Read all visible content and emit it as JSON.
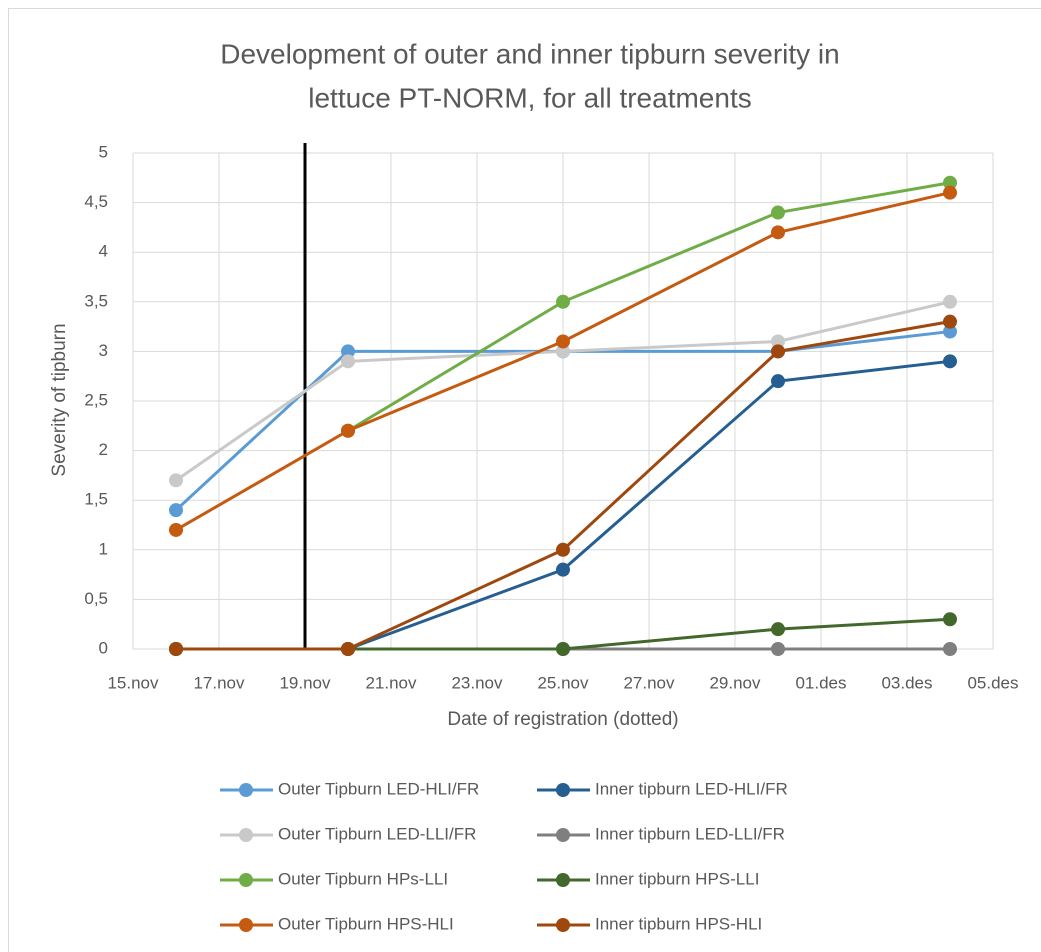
{
  "chart_data": {
    "type": "line",
    "title": [
      "Development of outer and inner tipburn severity in",
      "lettuce PT-NORM, for all treatments"
    ],
    "xlabel": "Date of registration (dotted)",
    "ylabel": "Severity of tipburn",
    "x": [
      320,
      324,
      329,
      334,
      338
    ],
    "xlim": [
      319,
      339
    ],
    "xticks": [
      {
        "value": 319,
        "label": "15.nov"
      },
      {
        "value": 321,
        "label": "17.nov"
      },
      {
        "value": 323,
        "label": "19.nov"
      },
      {
        "value": 325,
        "label": "21.nov"
      },
      {
        "value": 327,
        "label": "23.nov"
      },
      {
        "value": 329,
        "label": "25.nov"
      },
      {
        "value": 331,
        "label": "27.nov"
      },
      {
        "value": 333,
        "label": "29.nov"
      },
      {
        "value": 335,
        "label": "01.des"
      },
      {
        "value": 337,
        "label": "03.des"
      },
      {
        "value": 339,
        "label": "05.des"
      }
    ],
    "ylim": [
      0,
      5
    ],
    "yticks": [
      0,
      {
        "value": 0.5,
        "label": "0,5"
      },
      1,
      {
        "value": 1.5,
        "label": "1,5"
      },
      2,
      {
        "value": 2.5,
        "label": "2,5"
      },
      3,
      {
        "value": 3.5,
        "label": "3,5"
      },
      4,
      {
        "value": 4.5,
        "label": "4,5"
      },
      5
    ],
    "grid": true,
    "vline": 323,
    "legend": "bottom",
    "series": [
      {
        "name": "Outer Tipburn LED-HLI/FR",
        "color": "#5b9bd5",
        "values": [
          1.4,
          3,
          3,
          3,
          3.2
        ]
      },
      {
        "name": "Inner tipburn LED-HLI/FR",
        "color": "#255e91",
        "values": [
          0,
          0,
          0.8,
          2.7,
          2.9
        ]
      },
      {
        "name": "Outer Tipburn LED-LLI/FR",
        "color": "#c9c9c9",
        "values": [
          1.7,
          2.9,
          3,
          3.1,
          3.5
        ]
      },
      {
        "name": "Inner tipburn LED-LLI/FR",
        "color": "#7f7f7f",
        "values": [
          0,
          0,
          0,
          0,
          0
        ]
      },
      {
        "name": "Outer Tipburn HPs-LLI",
        "color": "#70ad47",
        "values": [
          null,
          2.2,
          3.5,
          4.4,
          4.7
        ]
      },
      {
        "name": "Inner tipburn HPS-LLI",
        "color": "#43682b",
        "values": [
          0,
          0,
          0,
          0.2,
          0.3
        ]
      },
      {
        "name": "Outer Tipburn HPS-HLI",
        "color": "#c55a11",
        "values": [
          1.2,
          2.2,
          3.1,
          4.2,
          4.6
        ]
      },
      {
        "name": "Inner tipburn HPS-HLI",
        "color": "#9e480e",
        "values": [
          0,
          0,
          1,
          3,
          3.3
        ]
      }
    ]
  }
}
